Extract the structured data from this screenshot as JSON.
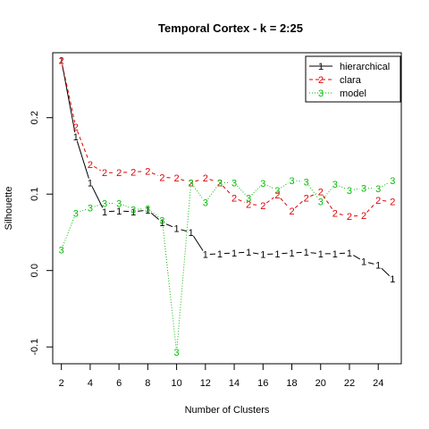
{
  "chart_data": {
    "type": "line",
    "title": "Temporal Cortex - k = 2:25",
    "xlabel": "Number of Clusters",
    "ylabel": "Silhouette",
    "x": [
      2,
      3,
      4,
      5,
      6,
      7,
      8,
      9,
      10,
      11,
      12,
      13,
      14,
      15,
      16,
      17,
      18,
      19,
      20,
      21,
      22,
      23,
      24,
      25
    ],
    "xticks": [
      2,
      4,
      6,
      8,
      10,
      12,
      14,
      16,
      18,
      20,
      22,
      24
    ],
    "yticks": [
      -0.1,
      0.0,
      0.1,
      0.2
    ],
    "ytick_labels": [
      "-0.1",
      "0.0",
      "0.1",
      "0.2"
    ],
    "xlim": [
      1.4,
      25.6
    ],
    "ylim": [
      -0.122,
      0.285
    ],
    "grid": false,
    "legend_position": "top-right",
    "series": [
      {
        "name": "hierarchical",
        "symbol": "1",
        "color": "#000000",
        "line_style": "solid",
        "values": [
          0.275,
          0.175,
          0.115,
          0.077,
          0.078,
          0.077,
          0.079,
          0.063,
          0.055,
          0.05,
          0.021,
          0.022,
          0.023,
          0.024,
          0.021,
          0.022,
          0.023,
          0.024,
          0.022,
          0.022,
          0.023,
          0.012,
          0.007,
          -0.011
        ]
      },
      {
        "name": "clara",
        "symbol": "2",
        "color": "#dd0000",
        "line_style": "dashed",
        "values": [
          0.275,
          0.188,
          0.139,
          0.128,
          0.128,
          0.129,
          0.13,
          0.122,
          0.121,
          0.115,
          0.121,
          0.115,
          0.095,
          0.087,
          0.085,
          0.099,
          0.078,
          0.095,
          0.103,
          0.075,
          0.071,
          0.072,
          0.092,
          0.09
        ]
      },
      {
        "name": "model",
        "symbol": "3",
        "color": "#00bb00",
        "line_style": "dotted",
        "values": [
          0.027,
          0.075,
          0.082,
          0.088,
          0.088,
          0.08,
          0.081,
          0.066,
          -0.107,
          0.115,
          0.089,
          0.115,
          0.115,
          0.095,
          0.114,
          0.105,
          0.118,
          0.116,
          0.09,
          0.113,
          0.105,
          0.108,
          0.107,
          0.118
        ]
      }
    ]
  }
}
